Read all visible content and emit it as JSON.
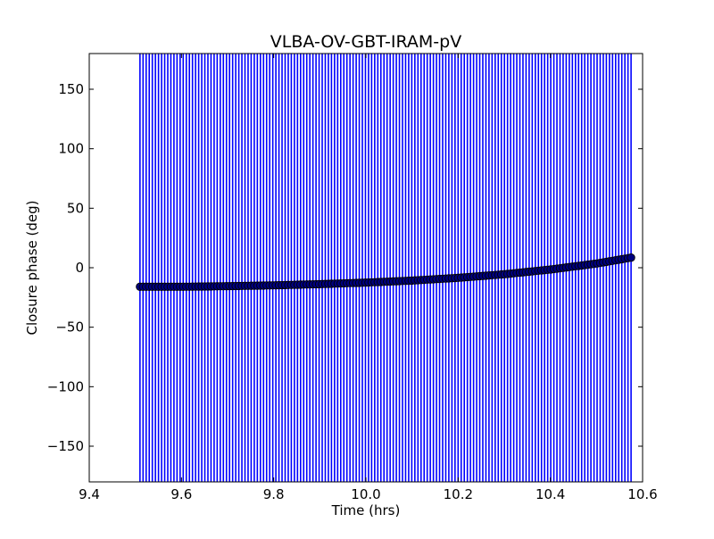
{
  "chart_data": {
    "type": "scatter",
    "title": "VLBA-OV-GBT-IRAM-pV",
    "xlabel": "Time (hrs)",
    "ylabel": "Closure phase (deg)",
    "xlim": [
      9.4,
      10.6
    ],
    "ylim": [
      -180,
      180
    ],
    "xticks": [
      9.4,
      9.6,
      9.8,
      10.0,
      10.2,
      10.4,
      10.6
    ],
    "xtick_labels": [
      "9.4",
      "9.6",
      "9.8",
      "10.0",
      "10.2",
      "10.4",
      "10.6"
    ],
    "yticks": [
      -150,
      -100,
      -50,
      0,
      50,
      100,
      150
    ],
    "ytick_labels": [
      "−150",
      "−100",
      "−50",
      "0",
      "50",
      "100",
      "150"
    ],
    "grid": false,
    "x_start": 9.51,
    "x_end": 10.575,
    "n_points": 160,
    "trend_points": [
      {
        "x": 9.51,
        "y": -16
      },
      {
        "x": 9.6,
        "y": -16
      },
      {
        "x": 9.7,
        "y": -15.5
      },
      {
        "x": 9.8,
        "y": -14.8
      },
      {
        "x": 9.9,
        "y": -13.8
      },
      {
        "x": 10.0,
        "y": -12.5
      },
      {
        "x": 10.1,
        "y": -10.8
      },
      {
        "x": 10.2,
        "y": -8.5
      },
      {
        "x": 10.3,
        "y": -5.5
      },
      {
        "x": 10.4,
        "y": -1.5
      },
      {
        "x": 10.5,
        "y": 3.5
      },
      {
        "x": 10.575,
        "y": 8.5
      }
    ],
    "error_bar_low": -180,
    "error_bar_high": 180,
    "colors": {
      "error_bar": "#0000ff",
      "marker_face": "#00007f",
      "marker_edge": "#000000",
      "axes": "#000000"
    }
  }
}
